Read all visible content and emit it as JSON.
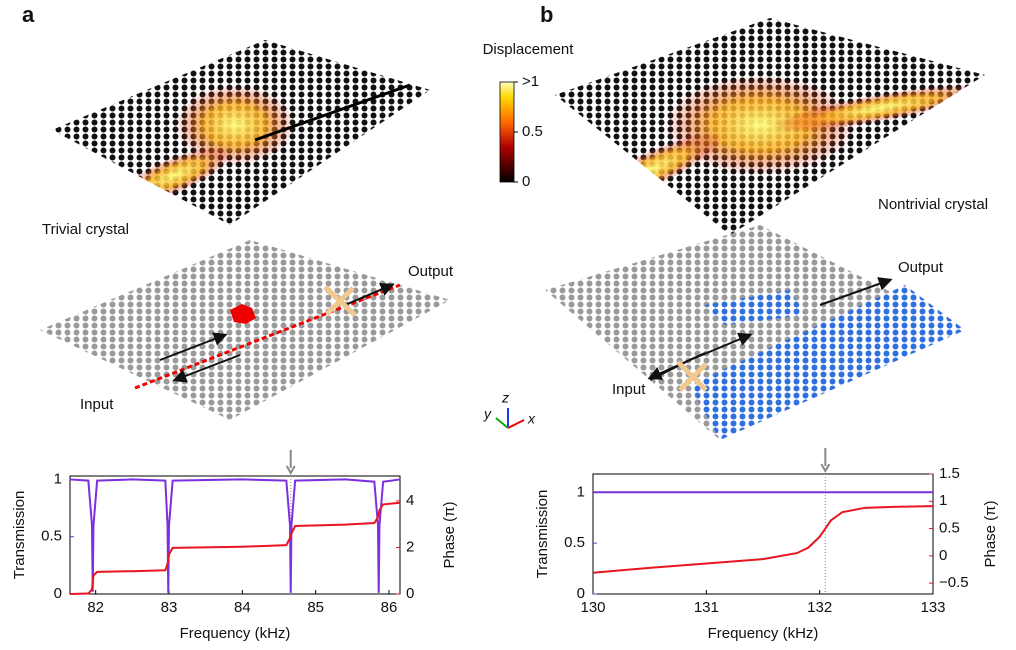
{
  "panel_labels": [
    "a",
    "b"
  ],
  "illustration_labels": {
    "trivial": "Trivial crystal",
    "nontrivial": "Nontrivial crystal",
    "input_a": "Input",
    "output_a": "Output",
    "input_b": "Input",
    "output_b": "Output",
    "axis_x": "x",
    "axis_y": "y",
    "axis_z": "z"
  },
  "colorbar": {
    "title": "Displacement",
    "lim": [
      0,
      1
    ],
    "ticks": [
      {
        "value": 1,
        "label": ">1"
      },
      0.5,
      0
    ]
  },
  "chart_data": [
    {
      "type": "line",
      "xlabel": "Frequency (kHz)",
      "ylabel": "Transmission",
      "y2label": "Phase (π)",
      "xlim": [
        81.65,
        86.15
      ],
      "xticks": [
        82,
        83,
        84,
        85,
        86
      ],
      "ylim": [
        0,
        1.03
      ],
      "yticks": [
        0,
        0.5,
        1
      ],
      "y2lim": [
        0,
        5.07
      ],
      "y2ticks": [
        0,
        2,
        4
      ],
      "arrow_x": 84.66,
      "x": [
        81.65,
        81.9,
        81.95,
        81.96,
        81.97,
        82.02,
        82.5,
        82.95,
        82.98,
        82.99,
        83.0,
        83.05,
        84.0,
        84.6,
        84.65,
        84.66,
        84.67,
        84.72,
        85.4,
        85.8,
        85.85,
        85.86,
        85.87,
        85.92,
        86.15
      ],
      "series": [
        {
          "color": "#7b2fe0",
          "values": [
            1,
            0.99,
            0.6,
            0.02,
            0.6,
            0.99,
            1,
            0.99,
            0.6,
            0.01,
            0.6,
            0.99,
            1,
            0.99,
            0.6,
            0.01,
            0.6,
            0.99,
            1,
            0.98,
            0.6,
            0.01,
            0.6,
            0.98,
            1
          ]
        },
        {
          "color": "#e8141e",
          "axis": "y2",
          "values": [
            0,
            0.02,
            0.2,
            0.5,
            0.8,
            0.95,
            0.98,
            1.02,
            1.3,
            1.5,
            1.7,
            1.98,
            2.03,
            2.1,
            2.4,
            2.5,
            2.6,
            2.92,
            2.98,
            3.05,
            3.3,
            3.45,
            3.6,
            3.85,
            3.92
          ]
        }
      ]
    },
    {
      "type": "line",
      "xlabel": "Frequency (kHz)",
      "ylabel": "Transmission",
      "y2label": "Phase (π)",
      "xlim": [
        130,
        133
      ],
      "xticks": [
        130,
        131,
        132,
        133
      ],
      "ylim": [
        0,
        1.18
      ],
      "yticks": [
        0,
        0.5,
        1
      ],
      "y2lim": [
        -0.7,
        1.5
      ],
      "y2ticks": [
        {
          "value": -0.5,
          "label": "−0.5"
        },
        0,
        0.5,
        1,
        1.5
      ],
      "arrow_x": 132.05,
      "x": [
        130,
        130.5,
        131,
        131.5,
        131.8,
        131.9,
        132.0,
        132.05,
        132.1,
        132.2,
        132.4,
        132.7,
        133
      ],
      "series": [
        {
          "color": "#7b2fe0",
          "values": [
            1,
            1,
            1,
            1,
            1,
            1,
            1,
            1,
            1,
            1,
            1,
            1,
            1
          ]
        },
        {
          "color": "#e8141e",
          "axis": "y2",
          "values": [
            -0.31,
            -0.22,
            -0.14,
            -0.06,
            0.05,
            0.15,
            0.35,
            0.5,
            0.65,
            0.8,
            0.88,
            0.9,
            0.91
          ]
        }
      ]
    }
  ]
}
